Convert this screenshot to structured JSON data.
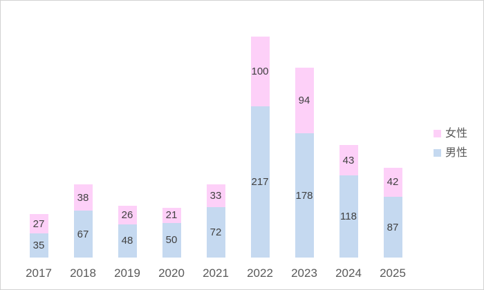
{
  "chart_data": {
    "type": "bar",
    "stacked": true,
    "orientation": "vertical",
    "title": "",
    "xlabel": "",
    "ylabel": "",
    "categories": [
      "2017",
      "2018",
      "2019",
      "2020",
      "2021",
      "2022",
      "2023",
      "2024",
      "2025"
    ],
    "series": [
      {
        "name": "男性",
        "color": "#C5D9F0",
        "values": [
          35,
          67,
          48,
          50,
          72,
          217,
          178,
          118,
          87
        ]
      },
      {
        "name": "女性",
        "color": "#FDD0F8",
        "values": [
          27,
          38,
          26,
          21,
          33,
          100,
          94,
          43,
          42
        ]
      }
    ],
    "totals": [
      62,
      105,
      74,
      71,
      105,
      317,
      272,
      161,
      129
    ],
    "data_labels": "centered-in-segment",
    "data_label_color": "#404040",
    "axis_tick_color": "#595959",
    "gridlines": false,
    "y_axis_visible": false,
    "x_axis_line_visible": false,
    "ylim": [
      0,
      325
    ],
    "legend": {
      "position": "right",
      "items": [
        {
          "label": "女性",
          "color": "#FDD0F8"
        },
        {
          "label": "男性",
          "color": "#C5D9F0"
        }
      ]
    }
  }
}
